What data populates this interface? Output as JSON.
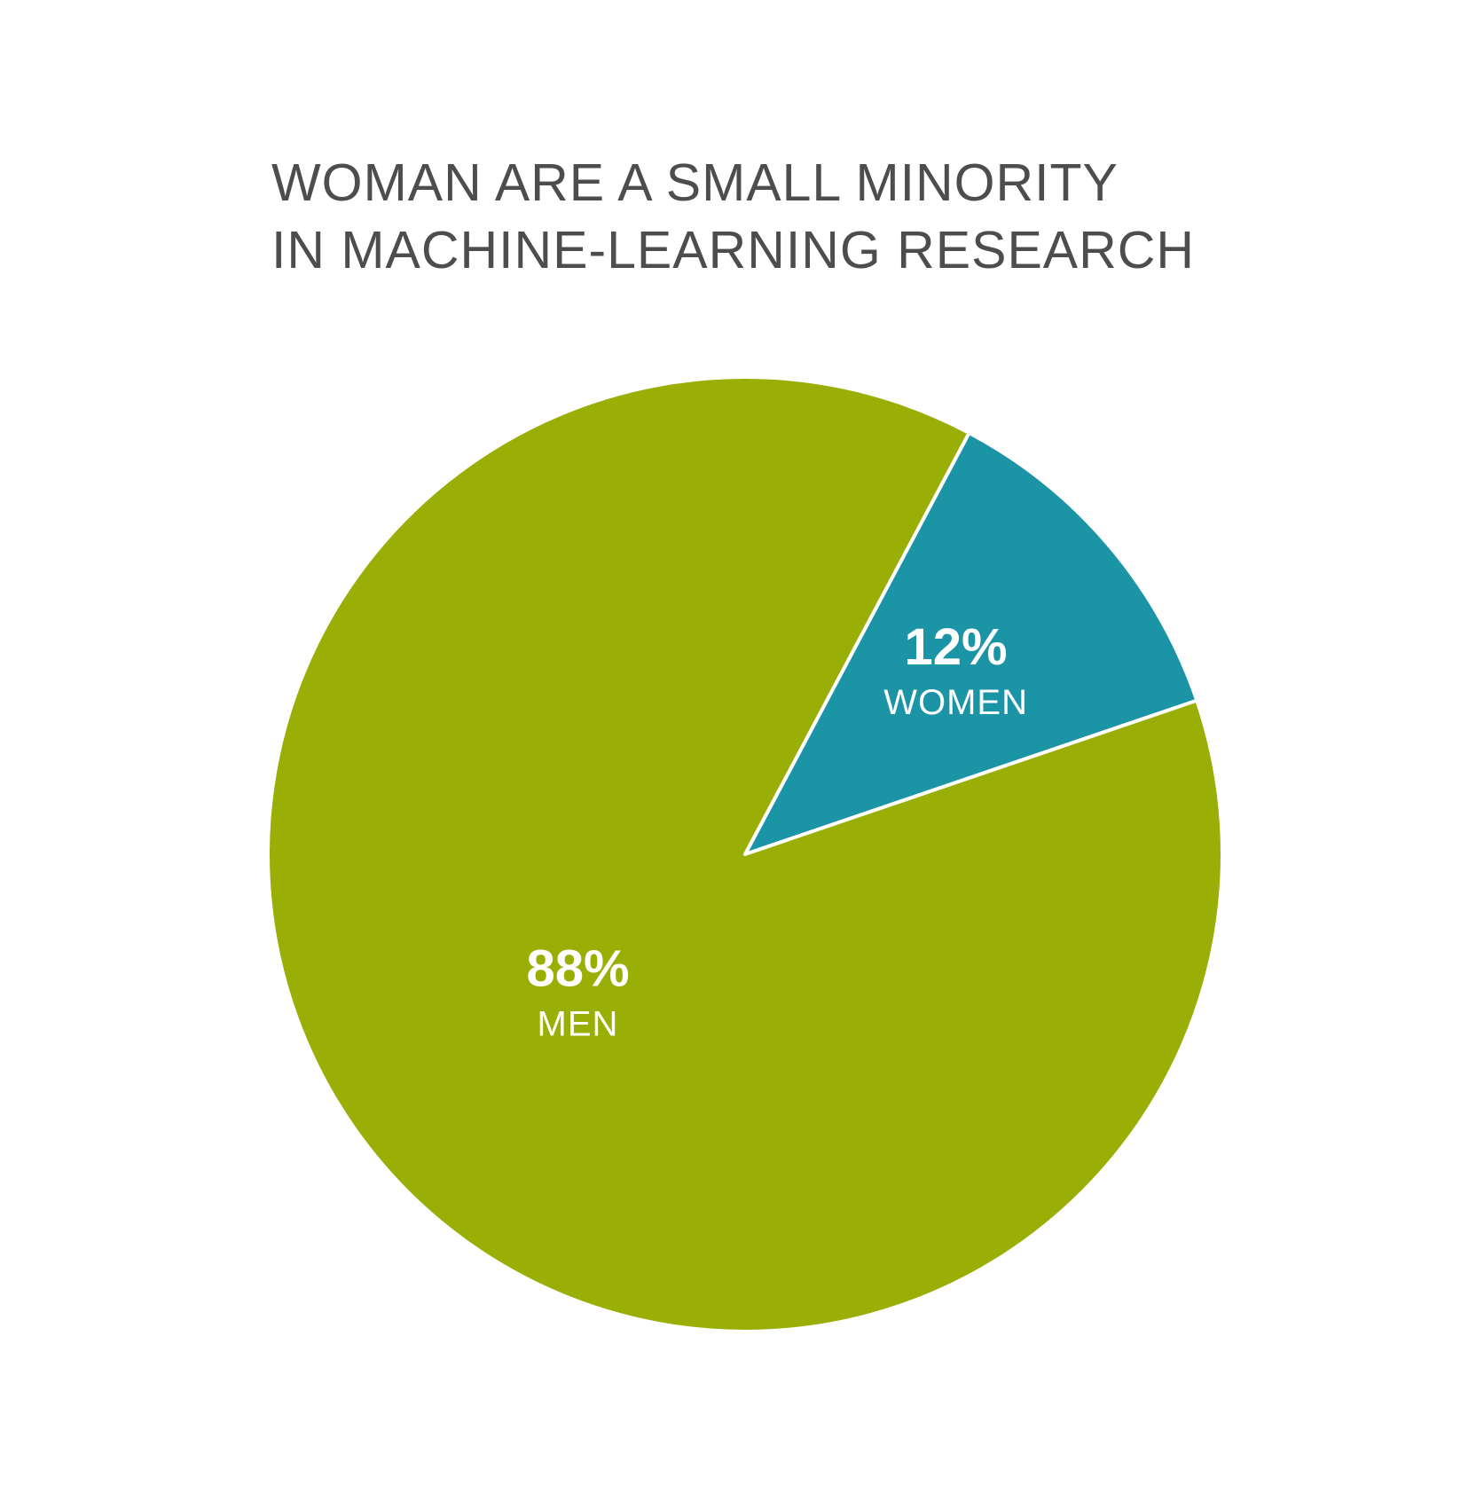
{
  "chart_data": {
    "type": "pie",
    "title_lines": [
      "WOMAN ARE A SMALL MINORITY",
      "IN MACHINE-LEARNING RESEARCH"
    ],
    "slices": [
      {
        "name": "WOMEN",
        "value": 12,
        "value_label": "12%",
        "color": "#1b94a6"
      },
      {
        "name": "MEN",
        "value": 88,
        "value_label": "88%",
        "color": "#9aaf05"
      }
    ],
    "legend": "none",
    "separator_color": "#ffffff"
  }
}
